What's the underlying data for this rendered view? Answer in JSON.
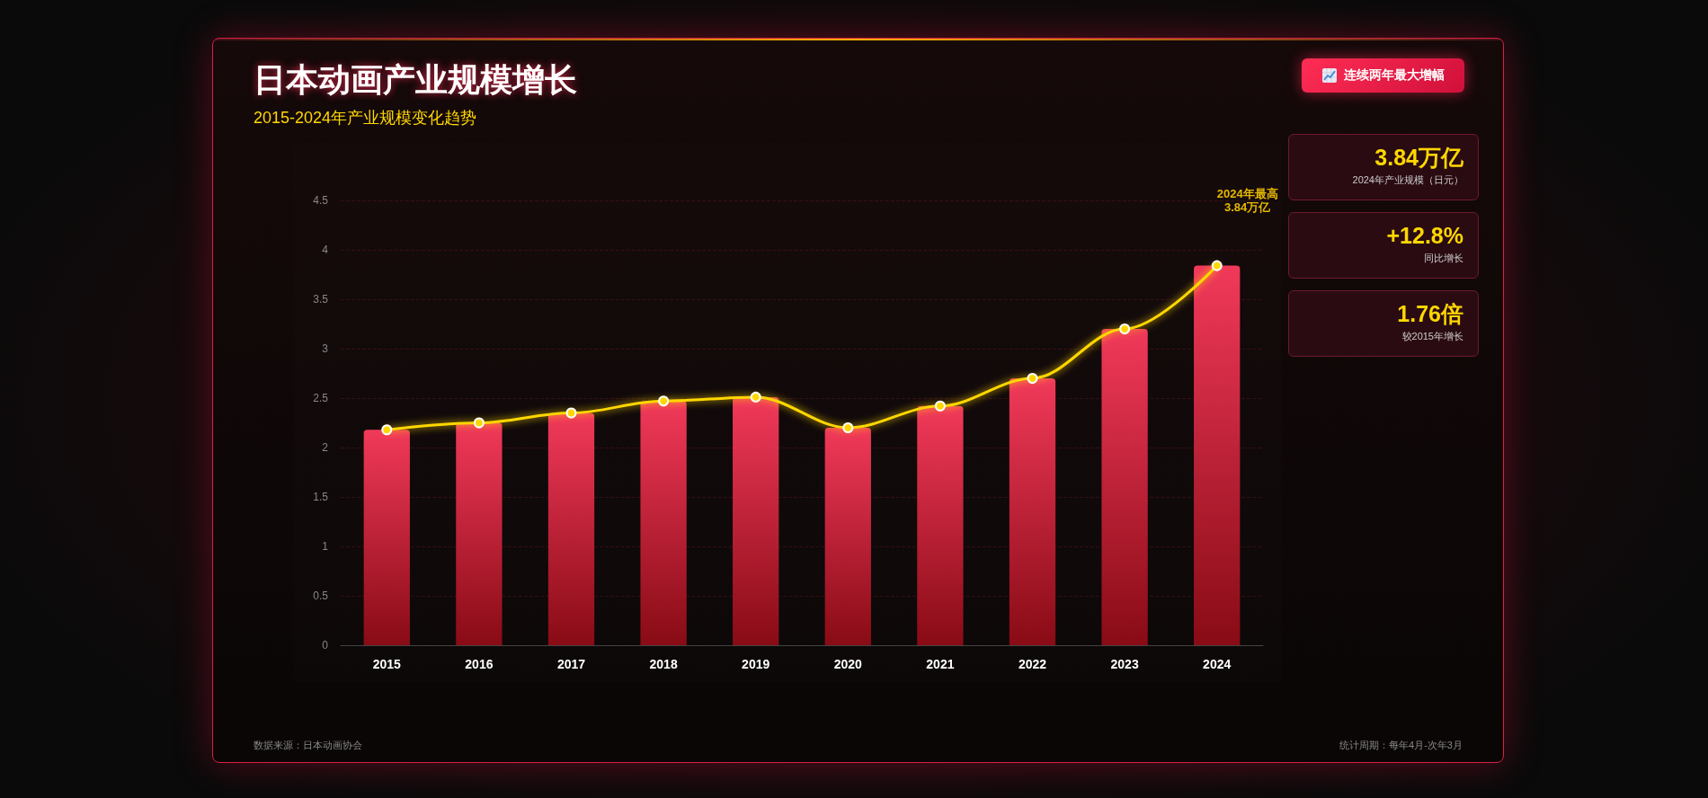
{
  "chart_data": {
    "type": "bar",
    "title": "日本动画产业规模增长",
    "subtitle": "2015-2024年产业规模变化趋势",
    "categories": [
      "2015",
      "2016",
      "2017",
      "2018",
      "2019",
      "2020",
      "2021",
      "2022",
      "2023",
      "2024"
    ],
    "series": [
      {
        "color": "#f0284c",
        "values": [
          2.18,
          2.25,
          2.35,
          2.47,
          2.51,
          2.2,
          2.42,
          2.7,
          3.2,
          3.84
        ]
      },
      {
        "type": "line",
        "color": "#ffd700",
        "values": [
          2.18,
          2.25,
          2.35,
          2.47,
          2.51,
          2.2,
          2.42,
          2.7,
          3.2,
          3.84
        ]
      }
    ],
    "ylim": [
      0,
      4.5
    ],
    "yticks": [
      0,
      0.5,
      1,
      1.5,
      2,
      2.5,
      3,
      3.5,
      4,
      4.5
    ],
    "grid": "y",
    "marker": "circle",
    "line_style": "solid",
    "annotations": [
      "2024年最高\n3.84万亿",
      "连续两年最大增幅",
      "3.84万亿",
      "2024年产业规模（日元）",
      "+12.8%",
      "同比增长",
      "1.76倍",
      "较2015年增长",
      "数据来源：日本动画协会",
      "统计周期：每年4月-次年3月"
    ]
  }
}
